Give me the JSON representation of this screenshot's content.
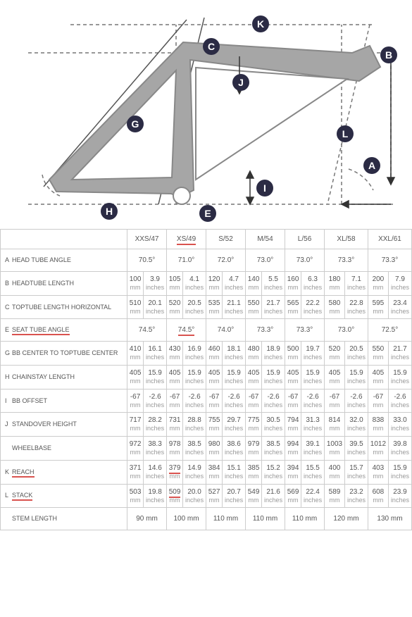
{
  "diagram": {
    "bg": "#ffffff",
    "frame_fill": "#a6a6a6",
    "frame_stroke": "#888888",
    "dash_color": "#777777",
    "label_bg": "#2b2b44",
    "label_fg": "#ffffff",
    "labels": [
      "A",
      "B",
      "C",
      "E",
      "G",
      "H",
      "I",
      "J",
      "K",
      "L"
    ]
  },
  "table": {
    "columns": [
      "XXS/47",
      "XS/49",
      "S/52",
      "M/54",
      "L/56",
      "XL/58",
      "XXL/61"
    ],
    "underline_columns": [
      1
    ],
    "rows": [
      {
        "key": "A",
        "label": "HEAD TUBE ANGLE",
        "single": true,
        "underline_label": false,
        "underline_cells": [],
        "cells": [
          "70.5°",
          "71.0°",
          "72.0°",
          "73.0°",
          "73.0°",
          "73.3°",
          "73.3°"
        ]
      },
      {
        "key": "B",
        "label": "HEADTUBE LENGTH",
        "single": false,
        "underline_label": false,
        "underline_cells": [],
        "mm": [
          "100",
          "105",
          "120",
          "140",
          "160",
          "180",
          "200"
        ],
        "in": [
          "3.9",
          "4.1",
          "4.7",
          "5.5",
          "6.3",
          "7.1",
          "7.9"
        ]
      },
      {
        "key": "C",
        "label": "TOPTUBE LENGTH HORIZONTAL",
        "single": false,
        "underline_label": false,
        "underline_cells": [],
        "mm": [
          "510",
          "520",
          "535",
          "550",
          "565",
          "580",
          "595"
        ],
        "in": [
          "20.1",
          "20.5",
          "21.1",
          "21.7",
          "22.2",
          "22.8",
          "23.4"
        ]
      },
      {
        "key": "E",
        "label": "SEAT TUBE ANGLE",
        "single": true,
        "underline_label": true,
        "underline_cells": [
          1
        ],
        "cells": [
          "74.5°",
          "74.5°",
          "74.0°",
          "73.3°",
          "73.3°",
          "73.0°",
          "72.5°"
        ]
      },
      {
        "key": "G",
        "label": "BB CENTER TO TOPTUBE CENTER",
        "single": false,
        "underline_label": false,
        "underline_cells": [],
        "mm": [
          "410",
          "430",
          "460",
          "480",
          "500",
          "520",
          "550"
        ],
        "in": [
          "16.1",
          "16.9",
          "18.1",
          "18.9",
          "19.7",
          "20.5",
          "21.7"
        ]
      },
      {
        "key": "H",
        "label": "CHAINSTAY LENGTH",
        "single": false,
        "underline_label": false,
        "underline_cells": [],
        "mm": [
          "405",
          "405",
          "405",
          "405",
          "405",
          "405",
          "405"
        ],
        "in": [
          "15.9",
          "15.9",
          "15.9",
          "15.9",
          "15.9",
          "15.9",
          "15.9"
        ]
      },
      {
        "key": "I",
        "label": "BB OFFSET",
        "single": false,
        "underline_label": false,
        "underline_cells": [],
        "mm": [
          "-67",
          "-67",
          "-67",
          "-67",
          "-67",
          "-67",
          "-67"
        ],
        "in": [
          "-2.6",
          "-2.6",
          "-2.6",
          "-2.6",
          "-2.6",
          "-2.6",
          "-2.6"
        ]
      },
      {
        "key": "J",
        "label": "STANDOVER HEIGHT",
        "single": false,
        "underline_label": false,
        "underline_cells": [],
        "mm": [
          "717",
          "731",
          "755",
          "775",
          "794",
          "814",
          "838"
        ],
        "in": [
          "28.2",
          "28.8",
          "29.7",
          "30.5",
          "31.3",
          "32.0",
          "33.0"
        ]
      },
      {
        "key": "",
        "label": "WHEELBASE",
        "single": false,
        "underline_label": false,
        "underline_cells": [],
        "mm": [
          "972",
          "978",
          "980",
          "979",
          "994",
          "1003",
          "1012"
        ],
        "in": [
          "38.3",
          "38.5",
          "38.6",
          "38.5",
          "39.1",
          "39.5",
          "39.8"
        ]
      },
      {
        "key": "K",
        "label": "REACH",
        "single": false,
        "underline_label": true,
        "underline_cells": [
          1
        ],
        "mm": [
          "371",
          "379",
          "384",
          "385",
          "394",
          "400",
          "403"
        ],
        "in": [
          "14.6",
          "14.9",
          "15.1",
          "15.2",
          "15.5",
          "15.7",
          "15.9"
        ]
      },
      {
        "key": "L",
        "label": "STACK",
        "single": false,
        "underline_label": true,
        "underline_cells": [
          1
        ],
        "mm": [
          "503",
          "509",
          "527",
          "549",
          "569",
          "589",
          "608"
        ],
        "in": [
          "19.8",
          "20.0",
          "20.7",
          "21.6",
          "22.4",
          "23.2",
          "23.9"
        ]
      },
      {
        "key": "",
        "label": "STEM LENGTH",
        "single": true,
        "underline_label": false,
        "underline_cells": [],
        "cells": [
          "90 mm",
          "100 mm",
          "110 mm",
          "110 mm",
          "110 mm",
          "120 mm",
          "130 mm"
        ]
      }
    ]
  }
}
